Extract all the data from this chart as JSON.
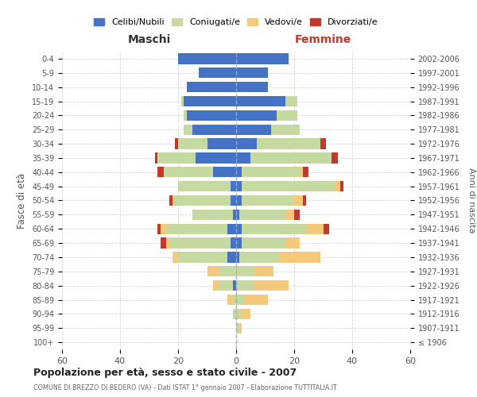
{
  "age_groups": [
    "100+",
    "95-99",
    "90-94",
    "85-89",
    "80-84",
    "75-79",
    "70-74",
    "65-69",
    "60-64",
    "55-59",
    "50-54",
    "45-49",
    "40-44",
    "35-39",
    "30-34",
    "25-29",
    "20-24",
    "15-19",
    "10-14",
    "5-9",
    "0-4"
  ],
  "birth_years": [
    "≤ 1906",
    "1907-1911",
    "1912-1916",
    "1917-1921",
    "1922-1926",
    "1927-1931",
    "1932-1936",
    "1937-1941",
    "1942-1946",
    "1947-1951",
    "1952-1956",
    "1957-1961",
    "1962-1966",
    "1967-1971",
    "1972-1976",
    "1977-1981",
    "1982-1986",
    "1987-1991",
    "1992-1996",
    "1997-2001",
    "2002-2006"
  ],
  "males": {
    "celibi": [
      0,
      0,
      0,
      0,
      1,
      0,
      3,
      2,
      3,
      1,
      2,
      2,
      8,
      14,
      10,
      15,
      17,
      18,
      17,
      13,
      20
    ],
    "coniugati": [
      0,
      0,
      1,
      1,
      5,
      6,
      17,
      21,
      21,
      14,
      19,
      18,
      17,
      13,
      10,
      3,
      1,
      1,
      0,
      0,
      0
    ],
    "vedovi": [
      0,
      0,
      0,
      2,
      2,
      4,
      2,
      1,
      2,
      0,
      1,
      0,
      0,
      0,
      0,
      0,
      0,
      0,
      0,
      0,
      0
    ],
    "divorziati": [
      0,
      0,
      0,
      0,
      0,
      0,
      0,
      2,
      1,
      0,
      1,
      0,
      2,
      1,
      1,
      0,
      0,
      0,
      0,
      0,
      0
    ]
  },
  "females": {
    "nubili": [
      0,
      0,
      0,
      0,
      0,
      0,
      1,
      2,
      2,
      1,
      2,
      2,
      2,
      5,
      7,
      12,
      14,
      17,
      11,
      11,
      18
    ],
    "coniugate": [
      0,
      1,
      2,
      3,
      6,
      6,
      14,
      15,
      22,
      16,
      18,
      32,
      20,
      28,
      22,
      10,
      7,
      4,
      0,
      0,
      0
    ],
    "vedove": [
      0,
      1,
      3,
      8,
      12,
      7,
      14,
      5,
      6,
      3,
      3,
      2,
      1,
      0,
      0,
      0,
      0,
      0,
      0,
      0,
      0
    ],
    "divorziate": [
      0,
      0,
      0,
      0,
      0,
      0,
      0,
      0,
      2,
      2,
      1,
      1,
      2,
      2,
      2,
      0,
      0,
      0,
      0,
      0,
      0
    ]
  },
  "colors": {
    "celibi": "#4472c4",
    "coniugati": "#c5d9a0",
    "vedovi": "#f5c97a",
    "divorziati": "#c0392b"
  },
  "title": "Popolazione per età, sesso e stato civile - 2007",
  "subtitle": "COMUNE DI BREZZO DI BEDERO (VA) - Dati ISTAT 1° gennaio 2007 - Elaborazione TUTTITALIA.IT",
  "ylabel_left": "Fasce di età",
  "ylabel_right": "Anni di nascita",
  "xlim": 60,
  "background_color": "#ffffff",
  "grid_color": "#cccccc"
}
